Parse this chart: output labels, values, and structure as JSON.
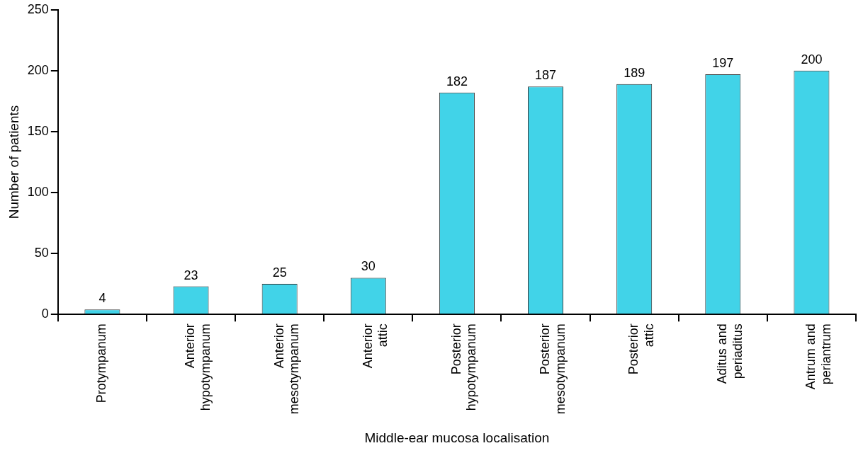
{
  "chart_data": {
    "type": "bar",
    "xlabel": "Middle-ear mucosa localisation",
    "ylabel": "Number of patients",
    "categories": [
      "Protympanum",
      "Anterior\nhypotympanum",
      "Anterior\nmesotympanum",
      "Anterior\nattic",
      "Posterior\nhypotympanum",
      "Posterior\nmesotympanum",
      "Posterior\nattic",
      "Aditus and\nperiaditus",
      "Antrum and\nperiantrum"
    ],
    "values": [
      4,
      23,
      25,
      30,
      182,
      187,
      189,
      197,
      200
    ],
    "color": "#41d3e8",
    "data_labels": true,
    "ylim": [
      0,
      250
    ],
    "yticks": [
      0,
      50,
      100,
      150,
      200,
      250
    ],
    "grid": false,
    "legend": false
  }
}
